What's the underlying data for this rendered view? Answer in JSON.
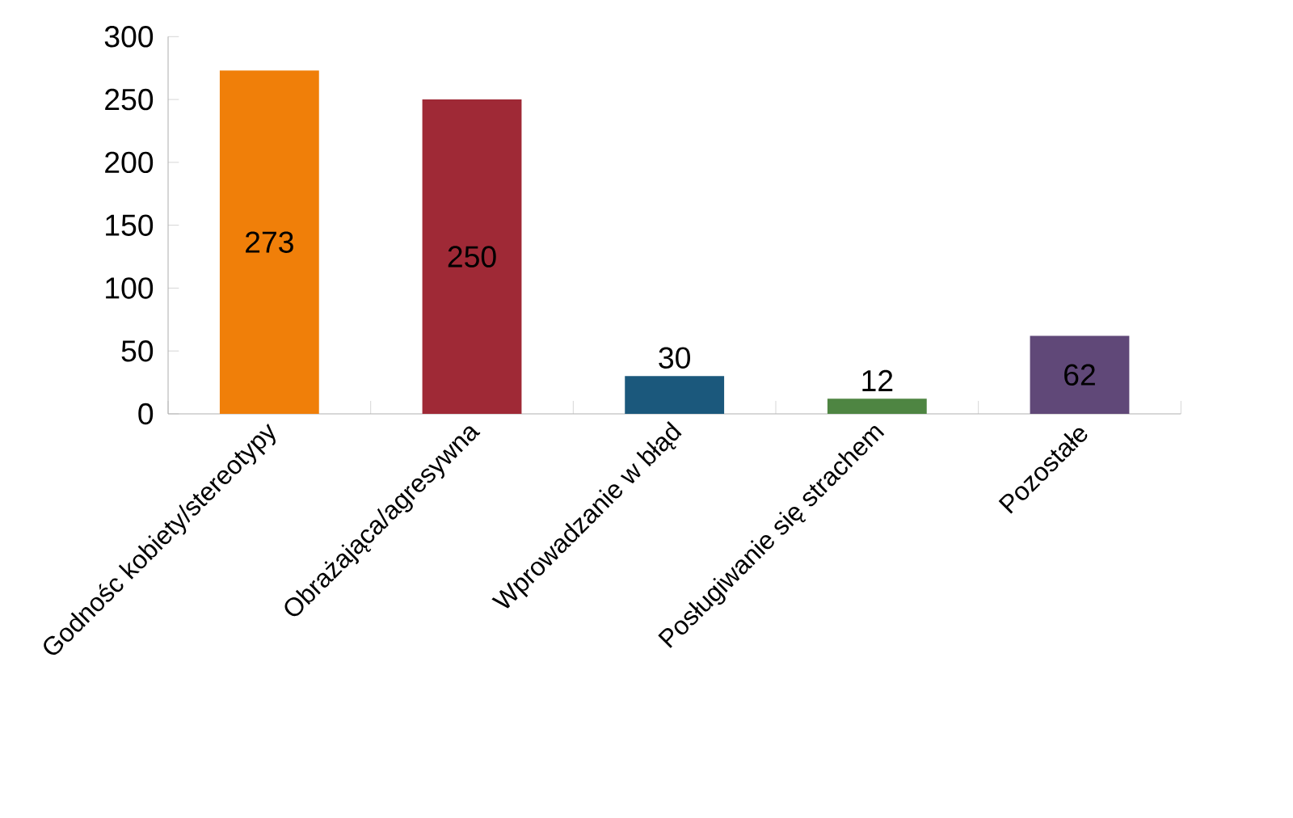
{
  "chart_data": {
    "type": "bar",
    "categories": [
      "Godnośc kobiety/stereotypy",
      "Obrażająca/agresywna",
      "Wprowadzanie w błąd",
      "Posługiwanie się strachem",
      "Pozostałe"
    ],
    "values": [
      273,
      250,
      30,
      12,
      62
    ],
    "colors": [
      "#f07f09",
      "#9f2936",
      "#1b587c",
      "#4e8542",
      "#604878"
    ],
    "ylim": [
      0,
      300
    ],
    "yticks": [
      0,
      50,
      100,
      150,
      200,
      250,
      300
    ],
    "data_labels": true,
    "grid": false
  }
}
